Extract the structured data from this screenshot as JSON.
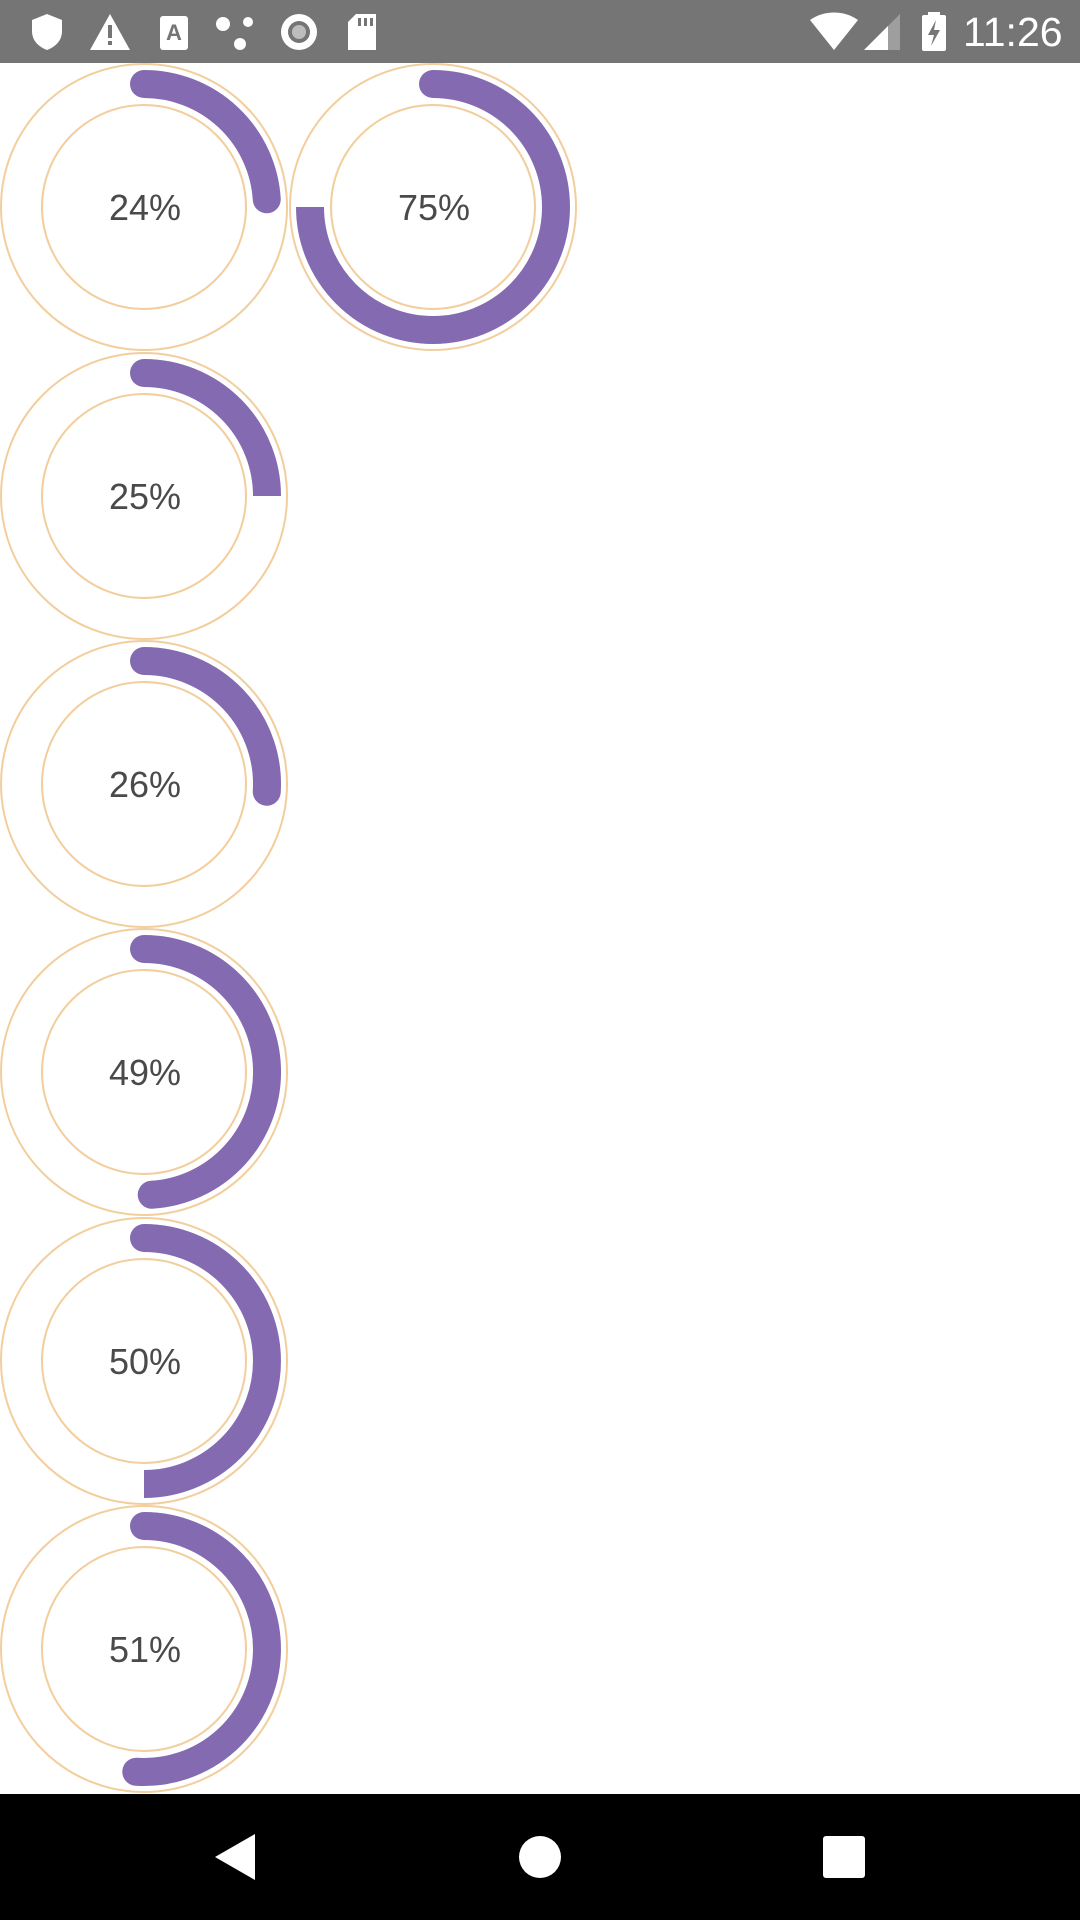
{
  "status_bar": {
    "time": "11:26",
    "icons_left": [
      "shield-icon",
      "warning-icon",
      "font-app-icon",
      "share-dots-icon",
      "record-icon",
      "sd-card-icon"
    ],
    "icons_right": [
      "wifi-icon",
      "cell-signal-icon",
      "battery-charging-icon"
    ]
  },
  "progress_rings": [
    {
      "value": 24,
      "label": "24%"
    },
    {
      "value": 75,
      "label": "75%"
    },
    {
      "value": 25,
      "label": "25%"
    },
    {
      "value": 26,
      "label": "26%"
    },
    {
      "value": 49,
      "label": "49%"
    },
    {
      "value": 50,
      "label": "50%"
    },
    {
      "value": 51,
      "label": "51%"
    }
  ],
  "colors": {
    "status_bar": "#757575",
    "progress": "#846bb1",
    "track": "#f3ce9d",
    "text": "#4a4a4a",
    "nav_bar": "#000000"
  },
  "nav_bar": {
    "icons": [
      "back-icon",
      "home-icon",
      "recents-icon"
    ]
  }
}
